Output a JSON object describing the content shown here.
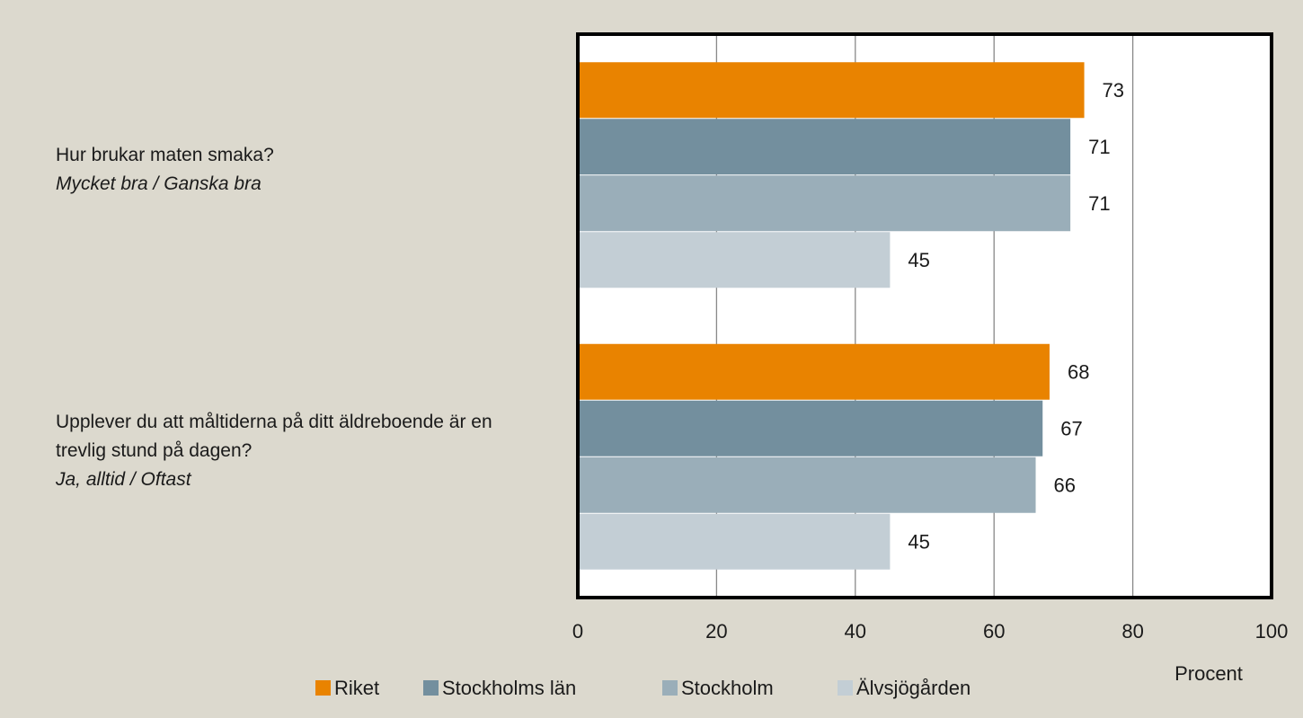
{
  "chart_data": {
    "type": "hbar",
    "categories": [
      "Hur brukar maten smaka?",
      "Upplever du att måltiderna på ditt äldreboende är en trevlig stund på dagen?"
    ],
    "category_notes": [
      "Mycket bra / Ganska bra",
      "Ja, alltid / Oftast"
    ],
    "series": [
      {
        "name": "Riket",
        "color": "#e98300",
        "values": [
          73,
          68
        ]
      },
      {
        "name": "Stockholms län",
        "color": "#738f9e",
        "values": [
          71,
          67
        ]
      },
      {
        "name": "Stockholm",
        "color": "#9aaeb9",
        "values": [
          71,
          66
        ]
      },
      {
        "name": "Älvsjögården",
        "color": "#c3ced5",
        "values": [
          45,
          45
        ]
      }
    ],
    "xlim": [
      0,
      100
    ],
    "xticks": [
      0,
      20,
      40,
      60,
      80,
      100
    ],
    "xlabel": "Procent",
    "grid": true
  }
}
